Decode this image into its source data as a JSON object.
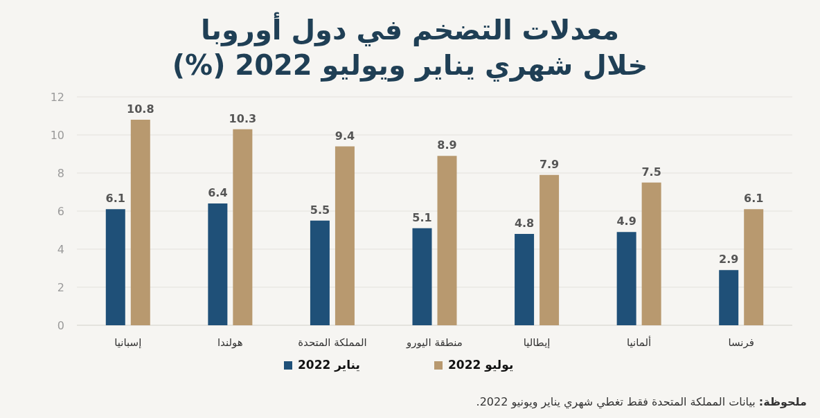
{
  "chart_data": {
    "type": "bar",
    "title": "معدلات التضخم في دول أوروبا",
    "subtitle": "خلال شهري يناير ويوليو 2022 (%)",
    "categories": [
      "إسبانيا",
      "هولندا",
      "المملكة المتحدة",
      "منطقة اليورو",
      "إيطاليا",
      "ألمانيا",
      "فرنسا"
    ],
    "series": [
      {
        "name": "يناير 2022",
        "color": "#1f5078",
        "values": [
          6.1,
          6.4,
          5.5,
          5.1,
          4.8,
          4.9,
          2.9
        ]
      },
      {
        "name": "يوليو 2022",
        "color": "#b8996f",
        "values": [
          10.8,
          10.3,
          9.4,
          8.9,
          7.9,
          7.5,
          6.1
        ]
      }
    ],
    "ylim": [
      0,
      12
    ],
    "yticks": [
      0,
      2,
      4,
      6,
      8,
      10,
      12
    ],
    "grid": "y",
    "legend": "bottom",
    "data_labels": true,
    "annotations": [
      "**ملحوظة:** بيانات المملكة المتحدة فقط تغطي شهري يناير ويونيو 2022."
    ]
  }
}
